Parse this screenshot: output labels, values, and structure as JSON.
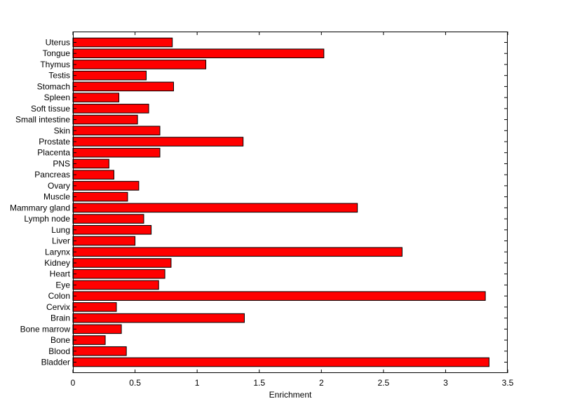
{
  "chart_data": {
    "type": "bar",
    "orientation": "horizontal",
    "title": "",
    "xlabel": "Enrichment",
    "ylabel": "",
    "xlim": [
      0,
      3.5
    ],
    "xticks": [
      0,
      0.5,
      1,
      1.5,
      2,
      2.5,
      3,
      3.5
    ],
    "xtick_labels": [
      "0",
      "0.5",
      "1",
      "1.5",
      "2",
      "2.5",
      "3",
      "3.5"
    ],
    "grid": false,
    "bar_color": "#ff0000",
    "categories": [
      "Bladder",
      "Blood",
      "Bone",
      "Bone marrow",
      "Brain",
      "Cervix",
      "Colon",
      "Eye",
      "Heart",
      "Kidney",
      "Larynx",
      "Liver",
      "Lung",
      "Lymph node",
      "Mammary gland",
      "Muscle",
      "Ovary",
      "Pancreas",
      "PNS",
      "Placenta",
      "Prostate",
      "Skin",
      "Small intestine",
      "Soft tissue",
      "Spleen",
      "Stomach",
      "Testis",
      "Thymus",
      "Tongue",
      "Uterus"
    ],
    "values": [
      3.35,
      0.43,
      0.26,
      0.39,
      1.38,
      0.35,
      3.32,
      0.69,
      0.74,
      0.79,
      2.65,
      0.5,
      0.63,
      0.57,
      2.29,
      0.44,
      0.53,
      0.33,
      0.29,
      0.7,
      1.37,
      0.7,
      0.52,
      0.61,
      0.37,
      0.81,
      0.59,
      1.07,
      2.02,
      0.8
    ]
  }
}
